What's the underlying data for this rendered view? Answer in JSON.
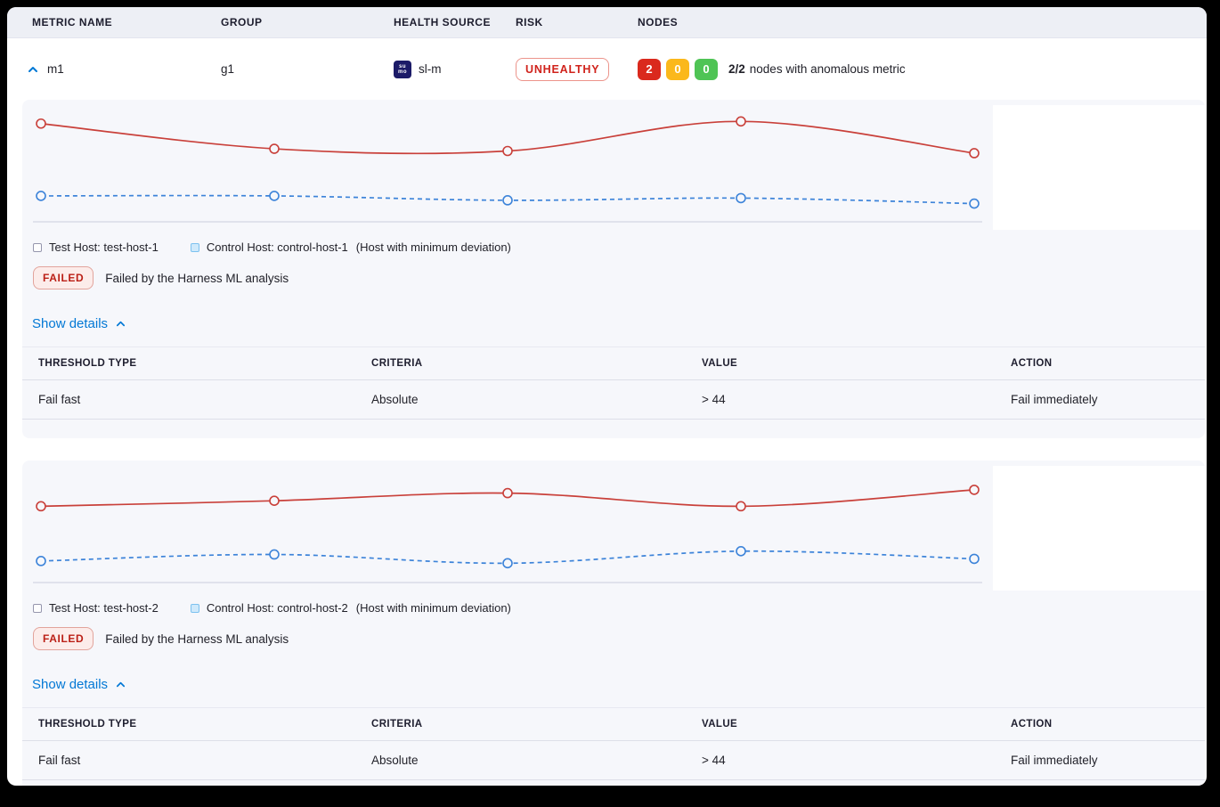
{
  "header": {
    "metric_name": "METRIC NAME",
    "group": "GROUP",
    "health_source": "HEALTH SOURCE",
    "risk": "RISK",
    "nodes": "NODES"
  },
  "row": {
    "metric_name": "m1",
    "group": "g1",
    "health_source_label": "sl-m",
    "health_source_icon_line1": "su",
    "health_source_icon_line2": "mo",
    "risk_badge": "UNHEALTHY",
    "nodes": {
      "anomalous_count": "2",
      "warning_count": "0",
      "healthy_count": "0",
      "summary_bold": "2/2",
      "summary_text": "nodes with anomalous metric"
    }
  },
  "sections": [
    {
      "legend": {
        "test_label": "Test Host: test-host-1",
        "control_label": "Control Host: control-host-1",
        "note": "(Host with minimum deviation)"
      },
      "status_badge": "FAILED",
      "status_text": "Failed by the Harness ML analysis",
      "show_details_label": "Show details",
      "table": {
        "headers": [
          "THRESHOLD TYPE",
          "CRITERIA",
          "VALUE",
          "ACTION"
        ],
        "rows": [
          [
            "Fail fast",
            "Absolute",
            "> 44",
            "Fail immediately"
          ]
        ]
      }
    },
    {
      "legend": {
        "test_label": "Test Host: test-host-2",
        "control_label": "Control Host: control-host-2",
        "note": "(Host with minimum deviation)"
      },
      "status_badge": "FAILED",
      "status_text": "Failed by the Harness ML analysis",
      "show_details_label": "Show details",
      "table": {
        "headers": [
          "THRESHOLD TYPE",
          "CRITERIA",
          "VALUE",
          "ACTION"
        ],
        "rows": [
          [
            "Fail fast",
            "Absolute",
            "> 44",
            "Fail immediately"
          ]
        ]
      }
    }
  ],
  "colors": {
    "test_line": "#c9403a",
    "control_line": "#3c83d9",
    "axis_line": "#c9cede",
    "marker_fill": "#f6f7fb",
    "link_blue": "#0278d5",
    "risk_red": "#d0231c",
    "node_red": "#da291d",
    "node_yellow": "#fbb81b",
    "node_green": "#4fc455",
    "card_bg": "#f6f7fb",
    "header_bg": "#edeff5"
  },
  "chart_data": [
    {
      "type": "line",
      "title": "",
      "xlabel": "",
      "ylabel": "",
      "x": [
        1,
        2,
        3,
        4,
        5
      ],
      "ylim": [
        0,
        100
      ],
      "axes_labels_shown": false,
      "grid": false,
      "legend_position": "below",
      "series": [
        {
          "name": "test-host-1",
          "style": "solid",
          "color": "#c9403a",
          "values": [
            88,
            65,
            63,
            90,
            61
          ]
        },
        {
          "name": "control-host-1",
          "style": "dashed",
          "color": "#3c83d9",
          "values": [
            22,
            22,
            18,
            20,
            15
          ]
        }
      ]
    },
    {
      "type": "line",
      "title": "",
      "xlabel": "",
      "ylabel": "",
      "x": [
        1,
        2,
        3,
        4,
        5
      ],
      "ylim": [
        0,
        100
      ],
      "axes_labels_shown": false,
      "grid": false,
      "legend_position": "below",
      "series": [
        {
          "name": "test-host-2",
          "style": "solid",
          "color": "#c9403a",
          "values": [
            68,
            73,
            80,
            68,
            83
          ]
        },
        {
          "name": "control-host-2",
          "style": "dashed",
          "color": "#3c83d9",
          "values": [
            18,
            24,
            16,
            27,
            20
          ]
        }
      ]
    }
  ]
}
